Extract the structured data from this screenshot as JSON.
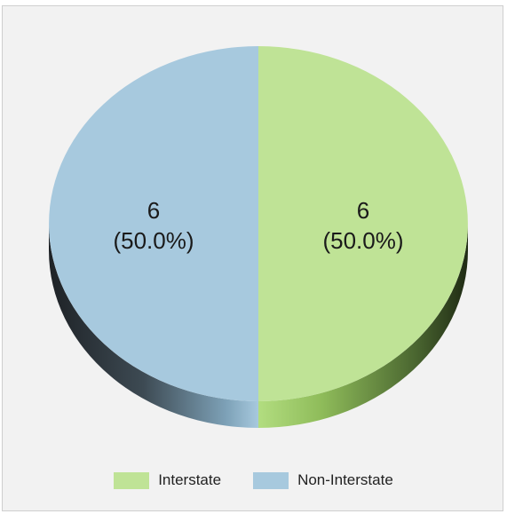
{
  "chart_data": {
    "type": "pie",
    "title": "",
    "slices": [
      {
        "label": "Interstate",
        "value": 6,
        "value_label": "6",
        "percent_label": "(50.0%)",
        "color": "#bfe396"
      },
      {
        "label": "Non-Interstate",
        "value": 6,
        "value_label": "6",
        "percent_label": "(50.0%)",
        "color": "#a7c9de"
      }
    ],
    "legend_placement": "bottom-center",
    "style": "3d"
  },
  "colors": {
    "background": "#f2f2f2",
    "interstate": "#bfe396",
    "non_interstate": "#a7c9de"
  }
}
